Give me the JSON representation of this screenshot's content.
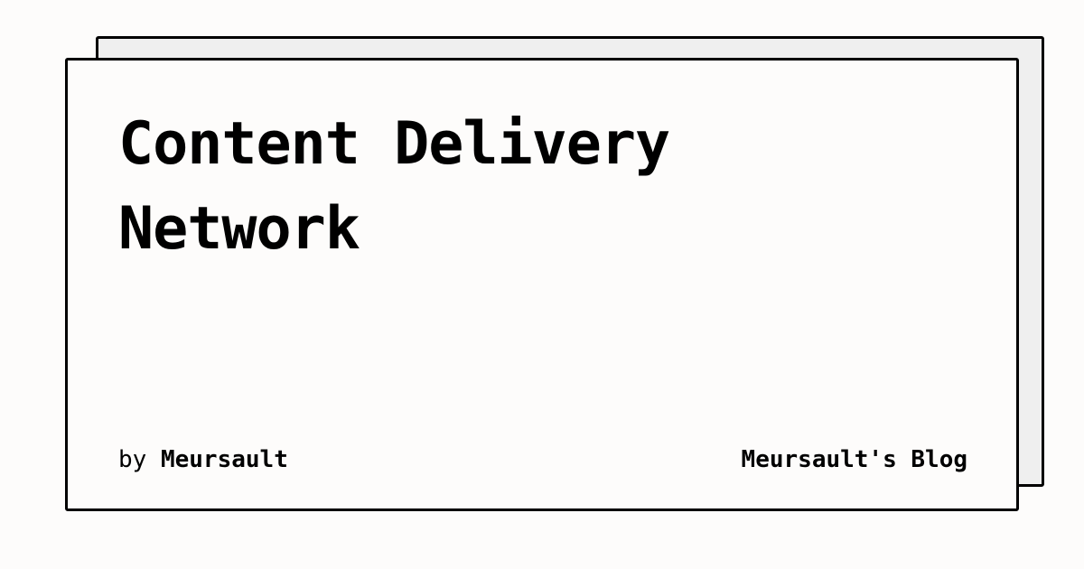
{
  "post": {
    "title": "Content Delivery Network",
    "byline_prefix": "by",
    "author": "Meursault"
  },
  "site": {
    "name": "Meursault's Blog"
  },
  "colors": {
    "background": "#fdfcfb",
    "card_back": "#efefef",
    "border": "#000000",
    "text": "#000000"
  }
}
